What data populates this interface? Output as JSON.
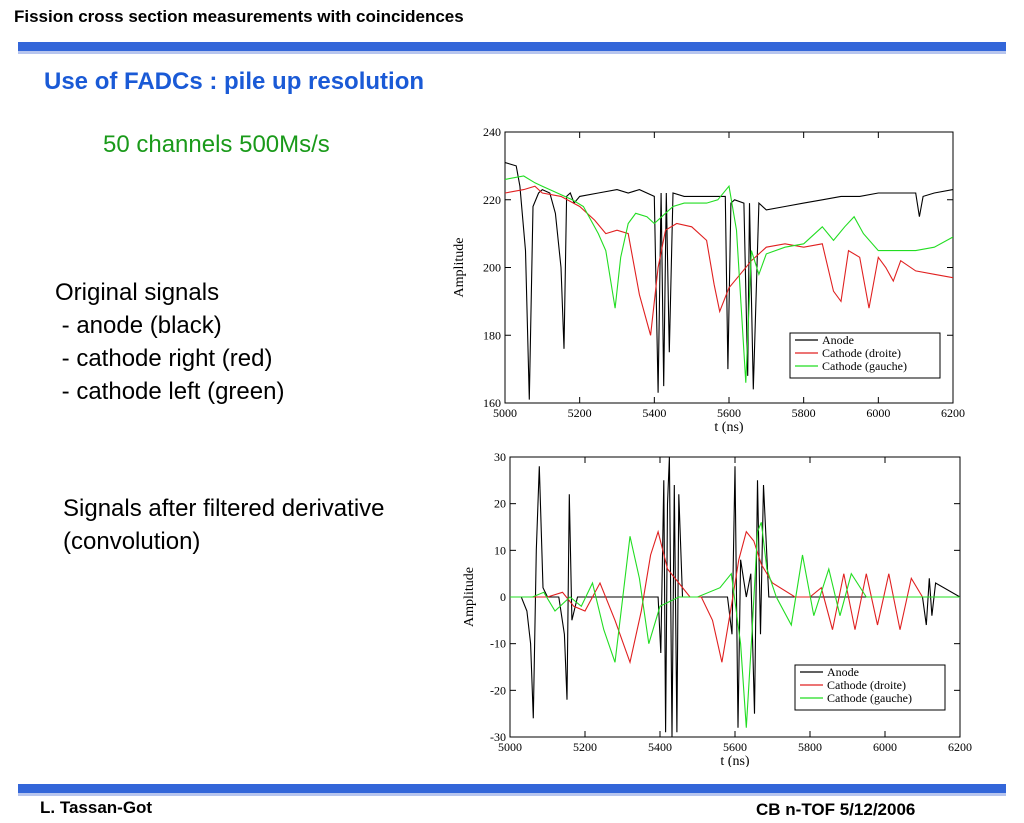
{
  "header": {
    "title": "Fission cross section measurements with coincidences"
  },
  "slide": {
    "title": "Use of FADCs : pile up resolution",
    "channels_note": "50 channels 500Ms/s",
    "original_signals": {
      "heading": "Original signals",
      "lines": [
        " - anode (black)",
        " - cathode right (red)",
        " - cathode left (green)"
      ]
    },
    "derivative": {
      "lines": [
        "Signals after filtered derivative",
        "(convolution)"
      ]
    }
  },
  "footer": {
    "author": "L. Tassan-Got",
    "date": "CB n-TOF 5/12/2006"
  },
  "colors": {
    "accent_bar": "#3366d9",
    "title_blue": "#1a5ad6",
    "note_green": "#1a9a1a",
    "anode": "#000000",
    "cathode_right": "#e02020",
    "cathode_left": "#22dd22"
  },
  "chart_data": [
    {
      "type": "line",
      "title": "",
      "xlabel": "t (ns)",
      "ylabel": "Amplitude",
      "xlim": [
        5000,
        6200
      ],
      "ylim": [
        160,
        240
      ],
      "xticks": [
        5000,
        5200,
        5400,
        5600,
        5800,
        6000,
        6200
      ],
      "yticks": [
        160,
        180,
        200,
        220,
        240
      ],
      "legend_position": "bottom-right",
      "grid": false,
      "series": [
        {
          "name": "Anode",
          "color": "#000000",
          "x": [
            5000,
            5030,
            5040,
            5055,
            5065,
            5075,
            5090,
            5100,
            5120,
            5135,
            5150,
            5158,
            5165,
            5175,
            5185,
            5200,
            5250,
            5300,
            5330,
            5360,
            5400,
            5410,
            5418,
            5425,
            5432,
            5440,
            5450,
            5480,
            5520,
            5560,
            5590,
            5597,
            5605,
            5615,
            5640,
            5650,
            5655,
            5665,
            5680,
            5700,
            5750,
            5800,
            5850,
            5900,
            5950,
            6000,
            6050,
            6100,
            6110,
            6120,
            6150,
            6200
          ],
          "y": [
            231,
            230,
            224,
            205,
            161,
            218,
            222,
            223,
            222,
            216,
            200,
            176,
            221,
            222,
            219,
            221,
            222,
            223,
            222,
            223,
            221,
            163,
            222,
            165,
            222,
            175,
            222,
            221,
            221,
            221,
            221,
            170,
            219,
            220,
            219,
            168,
            219,
            164,
            219,
            217,
            218,
            219,
            220,
            221,
            221,
            222,
            222,
            222,
            215,
            221,
            222,
            223
          ]
        },
        {
          "name": "Cathode (droite)",
          "color": "#e02020",
          "x": [
            5000,
            5050,
            5080,
            5100,
            5150,
            5200,
            5240,
            5270,
            5300,
            5330,
            5360,
            5390,
            5410,
            5430,
            5460,
            5500,
            5540,
            5560,
            5575,
            5600,
            5630,
            5660,
            5700,
            5750,
            5800,
            5850,
            5880,
            5900,
            5920,
            5950,
            5975,
            6000,
            6020,
            6040,
            6060,
            6100,
            6150,
            6200
          ],
          "y": [
            222,
            223,
            224,
            222,
            221,
            218,
            214,
            210,
            211,
            210,
            192,
            180,
            200,
            211,
            213,
            212,
            208,
            195,
            187,
            194,
            198,
            202,
            206,
            207,
            206,
            207,
            193,
            190,
            205,
            203,
            188,
            203,
            200,
            196,
            202,
            199,
            198,
            197
          ]
        },
        {
          "name": "Cathode (gauche)",
          "color": "#22dd22",
          "x": [
            5000,
            5050,
            5080,
            5100,
            5140,
            5180,
            5210,
            5230,
            5250,
            5270,
            5295,
            5310,
            5330,
            5350,
            5380,
            5400,
            5430,
            5450,
            5480,
            5500,
            5540,
            5570,
            5600,
            5620,
            5645,
            5660,
            5680,
            5700,
            5750,
            5800,
            5850,
            5880,
            5910,
            5935,
            5960,
            6000,
            6050,
            6100,
            6150,
            6200
          ],
          "y": [
            226,
            227,
            225,
            224,
            222,
            220,
            218,
            214,
            210,
            205,
            188,
            203,
            213,
            216,
            215,
            213,
            216,
            218,
            219,
            219,
            219,
            220,
            224,
            211,
            166,
            205,
            198,
            204,
            206,
            207,
            212,
            208,
            212,
            215,
            210,
            205,
            205,
            205,
            206,
            209
          ]
        }
      ]
    },
    {
      "type": "line",
      "title": "",
      "xlabel": "t (ns)",
      "ylabel": "Amplitude",
      "xlim": [
        5000,
        6200
      ],
      "ylim": [
        -30,
        30
      ],
      "xticks": [
        5000,
        5200,
        5400,
        5600,
        5800,
        6000,
        6200
      ],
      "yticks": [
        -30,
        -20,
        -10,
        0,
        10,
        20,
        30
      ],
      "legend_position": "bottom-right",
      "grid": false,
      "series": [
        {
          "name": "Anode",
          "color": "#000000",
          "x": [
            5000,
            5030,
            5045,
            5055,
            5062,
            5070,
            5078,
            5088,
            5100,
            5130,
            5145,
            5152,
            5158,
            5165,
            5180,
            5200,
            5300,
            5395,
            5402,
            5410,
            5415,
            5420,
            5425,
            5432,
            5438,
            5445,
            5450,
            5460,
            5500,
            5580,
            5592,
            5600,
            5608,
            5615,
            5630,
            5642,
            5652,
            5660,
            5668,
            5676,
            5690,
            5700,
            5800,
            5900,
            6000,
            6100,
            6110,
            6118,
            6125,
            6135,
            6200
          ],
          "y": [
            0,
            0,
            -3,
            -10,
            -26,
            10,
            28,
            2,
            0,
            0,
            -8,
            -22,
            22,
            -5,
            0,
            0,
            0,
            0,
            -12,
            25,
            -29,
            20,
            30,
            -30,
            24,
            -29,
            22,
            0,
            0,
            0,
            -8,
            28,
            -28,
            8,
            0,
            5,
            -25,
            25,
            -8,
            24,
            0,
            0,
            0,
            0,
            0,
            0,
            -6,
            4,
            -4,
            3,
            0
          ]
        },
        {
          "name": "Cathode (droite)",
          "color": "#e02020",
          "x": [
            5000,
            5100,
            5140,
            5170,
            5200,
            5240,
            5280,
            5320,
            5350,
            5375,
            5395,
            5420,
            5450,
            5480,
            5510,
            5540,
            5565,
            5590,
            5610,
            5630,
            5650,
            5670,
            5700,
            5760,
            5800,
            5830,
            5860,
            5890,
            5920,
            5950,
            5980,
            6010,
            6040,
            6070,
            6100,
            6140,
            6200
          ],
          "y": [
            0,
            0,
            1,
            -2,
            -3,
            3,
            -5,
            -14,
            -3,
            9,
            14,
            6,
            3,
            0,
            0,
            -5,
            -14,
            -2,
            8,
            14,
            12,
            7,
            3,
            0,
            0,
            2,
            -7,
            5,
            -7,
            5,
            -6,
            5,
            -7,
            4,
            0,
            0,
            0
          ]
        },
        {
          "name": "Cathode (gauche)",
          "color": "#22dd22",
          "x": [
            5000,
            5060,
            5090,
            5120,
            5160,
            5190,
            5220,
            5250,
            5280,
            5295,
            5320,
            5345,
            5370,
            5400,
            5450,
            5500,
            5560,
            5590,
            5615,
            5630,
            5645,
            5660,
            5670,
            5685,
            5710,
            5750,
            5780,
            5810,
            5850,
            5880,
            5910,
            5950,
            6000,
            6050,
            6100,
            6150,
            6200
          ],
          "y": [
            0,
            0,
            1,
            -3,
            0,
            -2,
            3,
            -7,
            -14,
            -4,
            13,
            4,
            -10,
            -2,
            0,
            0,
            2,
            5,
            -10,
            -28,
            -8,
            14,
            16,
            6,
            0,
            -6,
            9,
            -4,
            6,
            -4,
            5,
            0,
            0,
            0,
            0,
            0,
            0
          ]
        }
      ]
    }
  ]
}
